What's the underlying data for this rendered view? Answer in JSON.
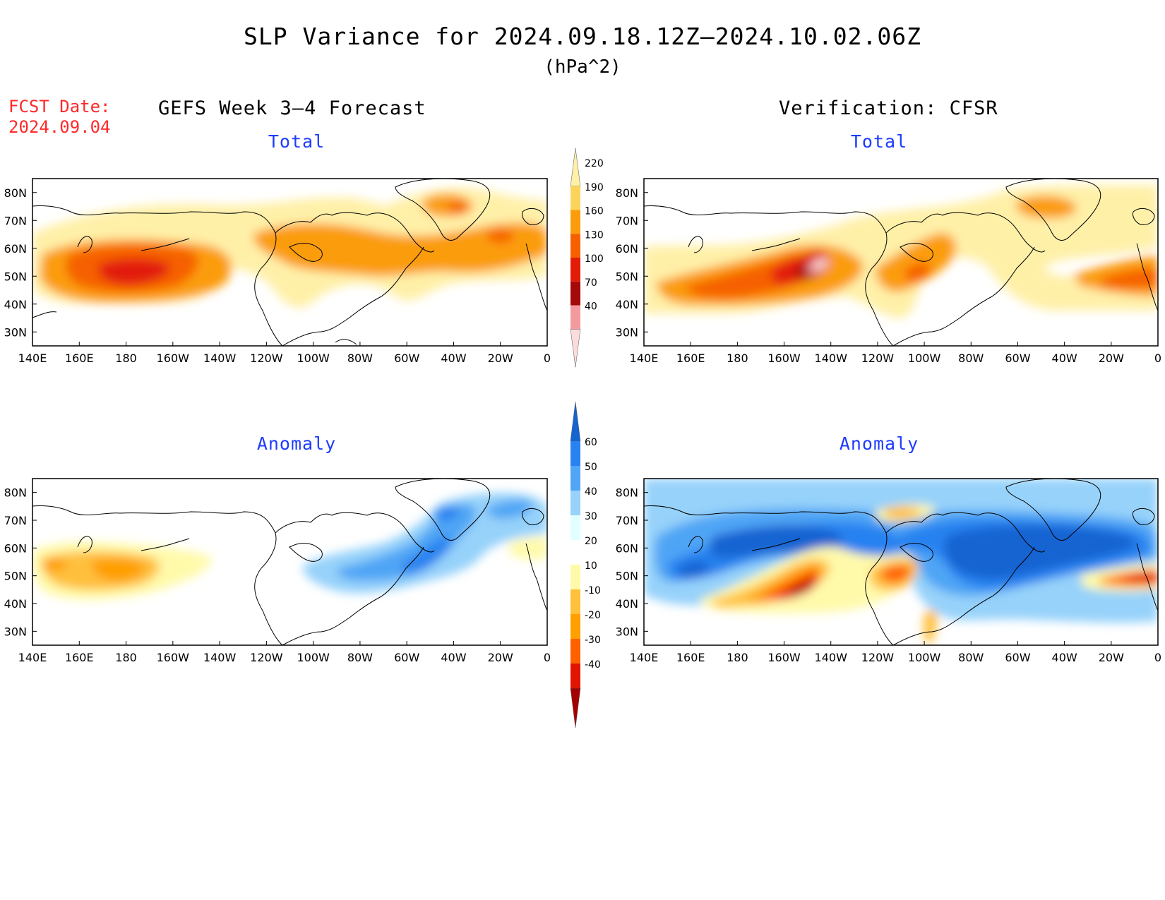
{
  "title": "SLP Variance for 2024.09.18.12Z–2024.10.02.06Z",
  "units": "(hPa^2)",
  "forecast_date": {
    "label": "FCST Date:",
    "value": "2024.09.04"
  },
  "left_header": "GEFS Week 3–4 Forecast",
  "right_header": "Verification: CFSR",
  "subtitles": {
    "total": "Total",
    "anomaly": "Anomaly"
  },
  "axes": {
    "lon_ticks": [
      "140E",
      "160E",
      "180",
      "160W",
      "140W",
      "120W",
      "100W",
      "80W",
      "60W",
      "40W",
      "20W",
      "0"
    ],
    "lat_ticks": [
      "80N",
      "70N",
      "60N",
      "50N",
      "40N",
      "30N"
    ],
    "lon_range": [
      140,
      360
    ],
    "lat_range": [
      25,
      85
    ]
  },
  "colorbars": {
    "total": {
      "levels": [
        "40",
        "70",
        "100",
        "130",
        "160",
        "190",
        "220"
      ],
      "colors": [
        "#fff0a8",
        "#fbd45c",
        "#fb9c0c",
        "#f66000",
        "#e21c08",
        "#a40a0a",
        "#f39a9e",
        "#fbdcdc"
      ]
    },
    "anomaly": {
      "levels": [
        "-40",
        "-30",
        "-20",
        "-10",
        "10",
        "20",
        "30",
        "40",
        "50",
        "60"
      ],
      "colors": [
        "#1464d2",
        "#2882f0",
        "#50a5f5",
        "#96d2fa",
        "#e1ffff",
        "#ffffff",
        "#fffaaa",
        "#ffc03c",
        "#ff9f00",
        "#ff6000",
        "#e11400",
        "#a50000"
      ]
    }
  },
  "panels": [
    {
      "name": "GEFS forecast total"
    },
    {
      "name": "CFSR verification total"
    },
    {
      "name": "GEFS forecast anomaly"
    },
    {
      "name": "CFSR verification anomaly"
    }
  ]
}
